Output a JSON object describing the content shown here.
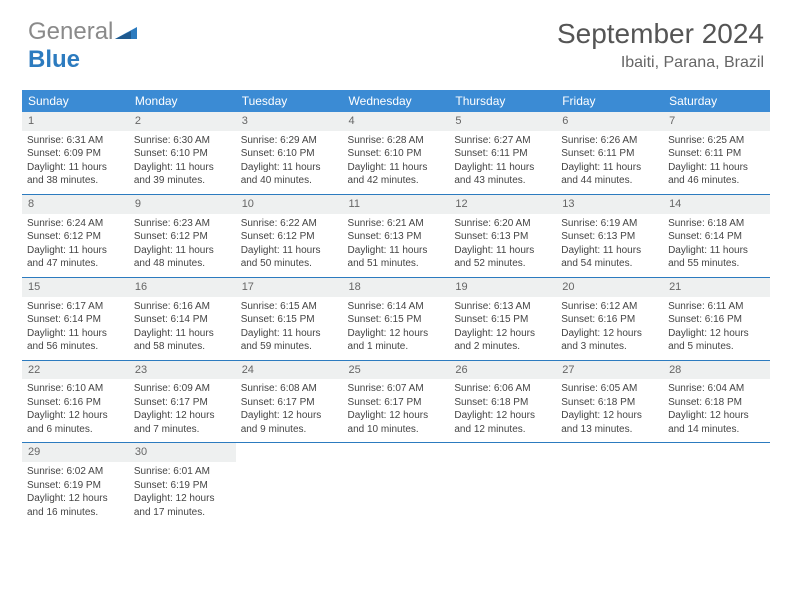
{
  "logo": {
    "word1": "General",
    "word2": "Blue"
  },
  "title": "September 2024",
  "location": "Ibaiti, Parana, Brazil",
  "colors": {
    "header_bg": "#3b8bd4",
    "header_text": "#ffffff",
    "daynum_bg": "#eef0f0",
    "divider": "#2c7bbf",
    "logo_gray": "#8a8a8a",
    "logo_blue": "#2c7bbf"
  },
  "weekdays": [
    "Sunday",
    "Monday",
    "Tuesday",
    "Wednesday",
    "Thursday",
    "Friday",
    "Saturday"
  ],
  "weeks": [
    [
      {
        "n": "1",
        "sr": "Sunrise: 6:31 AM",
        "ss": "Sunset: 6:09 PM",
        "d1": "Daylight: 11 hours",
        "d2": "and 38 minutes."
      },
      {
        "n": "2",
        "sr": "Sunrise: 6:30 AM",
        "ss": "Sunset: 6:10 PM",
        "d1": "Daylight: 11 hours",
        "d2": "and 39 minutes."
      },
      {
        "n": "3",
        "sr": "Sunrise: 6:29 AM",
        "ss": "Sunset: 6:10 PM",
        "d1": "Daylight: 11 hours",
        "d2": "and 40 minutes."
      },
      {
        "n": "4",
        "sr": "Sunrise: 6:28 AM",
        "ss": "Sunset: 6:10 PM",
        "d1": "Daylight: 11 hours",
        "d2": "and 42 minutes."
      },
      {
        "n": "5",
        "sr": "Sunrise: 6:27 AM",
        "ss": "Sunset: 6:11 PM",
        "d1": "Daylight: 11 hours",
        "d2": "and 43 minutes."
      },
      {
        "n": "6",
        "sr": "Sunrise: 6:26 AM",
        "ss": "Sunset: 6:11 PM",
        "d1": "Daylight: 11 hours",
        "d2": "and 44 minutes."
      },
      {
        "n": "7",
        "sr": "Sunrise: 6:25 AM",
        "ss": "Sunset: 6:11 PM",
        "d1": "Daylight: 11 hours",
        "d2": "and 46 minutes."
      }
    ],
    [
      {
        "n": "8",
        "sr": "Sunrise: 6:24 AM",
        "ss": "Sunset: 6:12 PM",
        "d1": "Daylight: 11 hours",
        "d2": "and 47 minutes."
      },
      {
        "n": "9",
        "sr": "Sunrise: 6:23 AM",
        "ss": "Sunset: 6:12 PM",
        "d1": "Daylight: 11 hours",
        "d2": "and 48 minutes."
      },
      {
        "n": "10",
        "sr": "Sunrise: 6:22 AM",
        "ss": "Sunset: 6:12 PM",
        "d1": "Daylight: 11 hours",
        "d2": "and 50 minutes."
      },
      {
        "n": "11",
        "sr": "Sunrise: 6:21 AM",
        "ss": "Sunset: 6:13 PM",
        "d1": "Daylight: 11 hours",
        "d2": "and 51 minutes."
      },
      {
        "n": "12",
        "sr": "Sunrise: 6:20 AM",
        "ss": "Sunset: 6:13 PM",
        "d1": "Daylight: 11 hours",
        "d2": "and 52 minutes."
      },
      {
        "n": "13",
        "sr": "Sunrise: 6:19 AM",
        "ss": "Sunset: 6:13 PM",
        "d1": "Daylight: 11 hours",
        "d2": "and 54 minutes."
      },
      {
        "n": "14",
        "sr": "Sunrise: 6:18 AM",
        "ss": "Sunset: 6:14 PM",
        "d1": "Daylight: 11 hours",
        "d2": "and 55 minutes."
      }
    ],
    [
      {
        "n": "15",
        "sr": "Sunrise: 6:17 AM",
        "ss": "Sunset: 6:14 PM",
        "d1": "Daylight: 11 hours",
        "d2": "and 56 minutes."
      },
      {
        "n": "16",
        "sr": "Sunrise: 6:16 AM",
        "ss": "Sunset: 6:14 PM",
        "d1": "Daylight: 11 hours",
        "d2": "and 58 minutes."
      },
      {
        "n": "17",
        "sr": "Sunrise: 6:15 AM",
        "ss": "Sunset: 6:15 PM",
        "d1": "Daylight: 11 hours",
        "d2": "and 59 minutes."
      },
      {
        "n": "18",
        "sr": "Sunrise: 6:14 AM",
        "ss": "Sunset: 6:15 PM",
        "d1": "Daylight: 12 hours",
        "d2": "and 1 minute."
      },
      {
        "n": "19",
        "sr": "Sunrise: 6:13 AM",
        "ss": "Sunset: 6:15 PM",
        "d1": "Daylight: 12 hours",
        "d2": "and 2 minutes."
      },
      {
        "n": "20",
        "sr": "Sunrise: 6:12 AM",
        "ss": "Sunset: 6:16 PM",
        "d1": "Daylight: 12 hours",
        "d2": "and 3 minutes."
      },
      {
        "n": "21",
        "sr": "Sunrise: 6:11 AM",
        "ss": "Sunset: 6:16 PM",
        "d1": "Daylight: 12 hours",
        "d2": "and 5 minutes."
      }
    ],
    [
      {
        "n": "22",
        "sr": "Sunrise: 6:10 AM",
        "ss": "Sunset: 6:16 PM",
        "d1": "Daylight: 12 hours",
        "d2": "and 6 minutes."
      },
      {
        "n": "23",
        "sr": "Sunrise: 6:09 AM",
        "ss": "Sunset: 6:17 PM",
        "d1": "Daylight: 12 hours",
        "d2": "and 7 minutes."
      },
      {
        "n": "24",
        "sr": "Sunrise: 6:08 AM",
        "ss": "Sunset: 6:17 PM",
        "d1": "Daylight: 12 hours",
        "d2": "and 9 minutes."
      },
      {
        "n": "25",
        "sr": "Sunrise: 6:07 AM",
        "ss": "Sunset: 6:17 PM",
        "d1": "Daylight: 12 hours",
        "d2": "and 10 minutes."
      },
      {
        "n": "26",
        "sr": "Sunrise: 6:06 AM",
        "ss": "Sunset: 6:18 PM",
        "d1": "Daylight: 12 hours",
        "d2": "and 12 minutes."
      },
      {
        "n": "27",
        "sr": "Sunrise: 6:05 AM",
        "ss": "Sunset: 6:18 PM",
        "d1": "Daylight: 12 hours",
        "d2": "and 13 minutes."
      },
      {
        "n": "28",
        "sr": "Sunrise: 6:04 AM",
        "ss": "Sunset: 6:18 PM",
        "d1": "Daylight: 12 hours",
        "d2": "and 14 minutes."
      }
    ],
    [
      {
        "n": "29",
        "sr": "Sunrise: 6:02 AM",
        "ss": "Sunset: 6:19 PM",
        "d1": "Daylight: 12 hours",
        "d2": "and 16 minutes."
      },
      {
        "n": "30",
        "sr": "Sunrise: 6:01 AM",
        "ss": "Sunset: 6:19 PM",
        "d1": "Daylight: 12 hours",
        "d2": "and 17 minutes."
      },
      null,
      null,
      null,
      null,
      null
    ]
  ]
}
